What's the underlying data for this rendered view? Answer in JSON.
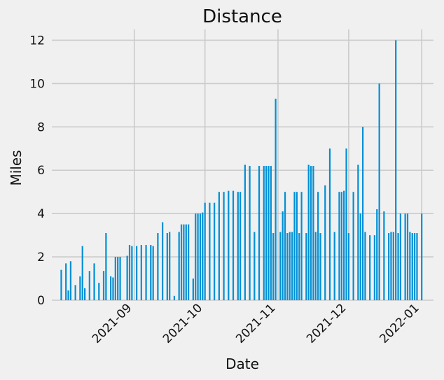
{
  "chart_data": {
    "type": "bar",
    "title": "Distance",
    "xlabel": "Date",
    "ylabel": "Miles",
    "color": "#008fd5",
    "background": "#f0f0f0",
    "grid": true,
    "ylim": [
      0,
      12.5
    ],
    "xlim": [
      "2021-07-28",
      "2022-01-06"
    ],
    "yticks": [
      0,
      2,
      4,
      6,
      8,
      10,
      12
    ],
    "xticks": [
      "2021-09",
      "2021-10",
      "2021-11",
      "2021-12",
      "2022-01"
    ],
    "x": [
      "2021-08-01",
      "2021-08-03",
      "2021-08-04",
      "2021-08-05",
      "2021-08-07",
      "2021-08-09",
      "2021-08-10",
      "2021-08-11",
      "2021-08-13",
      "2021-08-15",
      "2021-08-17",
      "2021-08-19",
      "2021-08-20",
      "2021-08-22",
      "2021-08-23",
      "2021-08-24",
      "2021-08-25",
      "2021-08-26",
      "2021-08-29",
      "2021-08-30",
      "2021-08-31",
      "2021-09-02",
      "2021-09-04",
      "2021-09-06",
      "2021-09-08",
      "2021-09-09",
      "2021-09-11",
      "2021-09-13",
      "2021-09-15",
      "2021-09-16",
      "2021-09-18",
      "2021-09-20",
      "2021-09-21",
      "2021-09-22",
      "2021-09-23",
      "2021-09-24",
      "2021-09-26",
      "2021-09-27",
      "2021-09-28",
      "2021-09-29",
      "2021-09-30",
      "2021-10-01",
      "2021-10-03",
      "2021-10-05",
      "2021-10-07",
      "2021-10-09",
      "2021-10-11",
      "2021-10-13",
      "2021-10-15",
      "2021-10-16",
      "2021-10-18",
      "2021-10-20",
      "2021-10-22",
      "2021-10-24",
      "2021-10-26",
      "2021-10-27",
      "2021-10-28",
      "2021-10-29",
      "2021-10-30",
      "2021-10-31",
      "2021-11-02",
      "2021-11-03",
      "2021-11-04",
      "2021-11-05",
      "2021-11-06",
      "2021-11-07",
      "2021-11-08",
      "2021-11-09",
      "2021-11-10",
      "2021-11-11",
      "2021-11-13",
      "2021-11-14",
      "2021-11-15",
      "2021-11-16",
      "2021-11-17",
      "2021-11-18",
      "2021-11-19",
      "2021-11-21",
      "2021-11-23",
      "2021-11-25",
      "2021-11-27",
      "2021-11-28",
      "2021-11-29",
      "2021-11-30",
      "2021-12-01",
      "2021-12-03",
      "2021-12-05",
      "2021-12-06",
      "2021-12-07",
      "2021-12-08",
      "2021-12-10",
      "2021-12-12",
      "2021-12-13",
      "2021-12-14",
      "2021-12-16",
      "2021-12-18",
      "2021-12-19",
      "2021-12-20",
      "2021-12-21",
      "2021-12-22",
      "2021-12-23",
      "2021-12-25",
      "2021-12-26",
      "2021-12-27",
      "2021-12-28",
      "2021-12-29",
      "2021-12-30",
      "2022-01-01"
    ],
    "values": [
      1.4,
      1.7,
      0.45,
      1.8,
      0.7,
      1.1,
      2.5,
      0.55,
      1.35,
      1.7,
      0.8,
      1.35,
      3.1,
      1.1,
      1.05,
      2.0,
      2.0,
      2.0,
      2.05,
      2.55,
      2.5,
      2.5,
      2.55,
      2.55,
      2.55,
      2.5,
      3.1,
      3.6,
      3.1,
      3.15,
      0.2,
      3.15,
      3.5,
      3.5,
      3.5,
      3.5,
      1.0,
      4.0,
      4.0,
      4.0,
      4.05,
      4.5,
      4.5,
      4.5,
      5.0,
      5.0,
      5.05,
      5.05,
      5.0,
      5.0,
      6.25,
      6.2,
      3.15,
      6.2,
      6.2,
      6.2,
      6.2,
      6.2,
      3.1,
      9.3,
      3.15,
      4.1,
      5.0,
      3.1,
      3.15,
      3.15,
      5.0,
      5.0,
      3.1,
      5.0,
      3.1,
      6.25,
      6.2,
      6.2,
      3.15,
      5.0,
      3.1,
      5.3,
      7.0,
      3.15,
      5.0,
      5.0,
      5.05,
      7.0,
      3.1,
      5.0,
      6.25,
      4.0,
      8.0,
      3.15,
      3.0,
      3.0,
      4.2,
      10.0,
      4.1,
      3.1,
      3.15,
      3.15,
      12.0,
      3.1,
      4.0,
      4.0,
      4.0,
      3.15,
      3.1,
      3.1,
      3.1,
      4.0
    ]
  }
}
